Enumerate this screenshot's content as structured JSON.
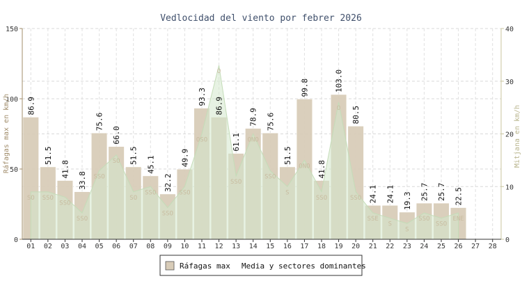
{
  "chart_data": {
    "type": "bar",
    "title": "Vedlocidad del viento por febrer 2026",
    "ylabel_left": "Ráfagas max en km/h",
    "ylabel_right": "Mitjana en km/h",
    "ylim_left": [
      0,
      150
    ],
    "ylim_right": [
      0,
      40
    ],
    "yticks_left": [
      "0",
      "50",
      "100",
      "150"
    ],
    "yticks_right": [
      "0",
      "10",
      "20",
      "30",
      "40"
    ],
    "grid": true,
    "categories": [
      "01",
      "02",
      "03",
      "04",
      "05",
      "06",
      "07",
      "08",
      "09",
      "10",
      "11",
      "12",
      "13",
      "14",
      "15",
      "16",
      "17",
      "18",
      "19",
      "20",
      "21",
      "22",
      "23",
      "24",
      "25",
      "26",
      "27",
      "28"
    ],
    "series": [
      {
        "name": "Ráfagas max",
        "axis": "left",
        "color": "#d8ccb8",
        "values": [
          86.9,
          51.5,
          41.8,
          33.8,
          75.6,
          66.0,
          51.5,
          45.1,
          32.2,
          49.9,
          93.3,
          86.9,
          61.1,
          78.9,
          75.6,
          51.5,
          99.8,
          41.8,
          103.0,
          80.5,
          24.1,
          24.1,
          19.3,
          25.7,
          25.7,
          22.5,
          null,
          null
        ],
        "labels": [
          "86.9",
          "51.5",
          "41.8",
          "33.8",
          "75.6",
          "66.0",
          "51.5",
          "45.1",
          "32.2",
          "49.9",
          "93.3",
          "86.9",
          "61.1",
          "78.9",
          "75.6",
          "51.5",
          "99.8",
          "41.8",
          "103.0",
          "80.5",
          "24.1",
          "24.1",
          "19.3",
          "25.7",
          "25.7",
          "22.5",
          "",
          ""
        ]
      },
      {
        "name": "Media y sectores dominantes",
        "axis": "right",
        "color": "#d4e8cc",
        "values": [
          9,
          9,
          8,
          5,
          13,
          16,
          9,
          10,
          6,
          10,
          20,
          33,
          12,
          20,
          13,
          10,
          15,
          9,
          26,
          9,
          5,
          4,
          3,
          5,
          4,
          5,
          null,
          null
        ],
        "sectors": [
          "SO",
          "SSO",
          "SSO",
          "SSO",
          "SSO",
          "SO",
          "SO",
          "SSO",
          "SSO",
          "SSO",
          "OSO",
          "O",
          "SSO",
          "ONO",
          "SSO",
          "S",
          "ONO",
          "SSO",
          "O",
          "SSO",
          "SSE",
          "S",
          "S",
          "SSO",
          "SSO",
          "ENE",
          "",
          ""
        ]
      }
    ],
    "legend_position": "bottom"
  }
}
